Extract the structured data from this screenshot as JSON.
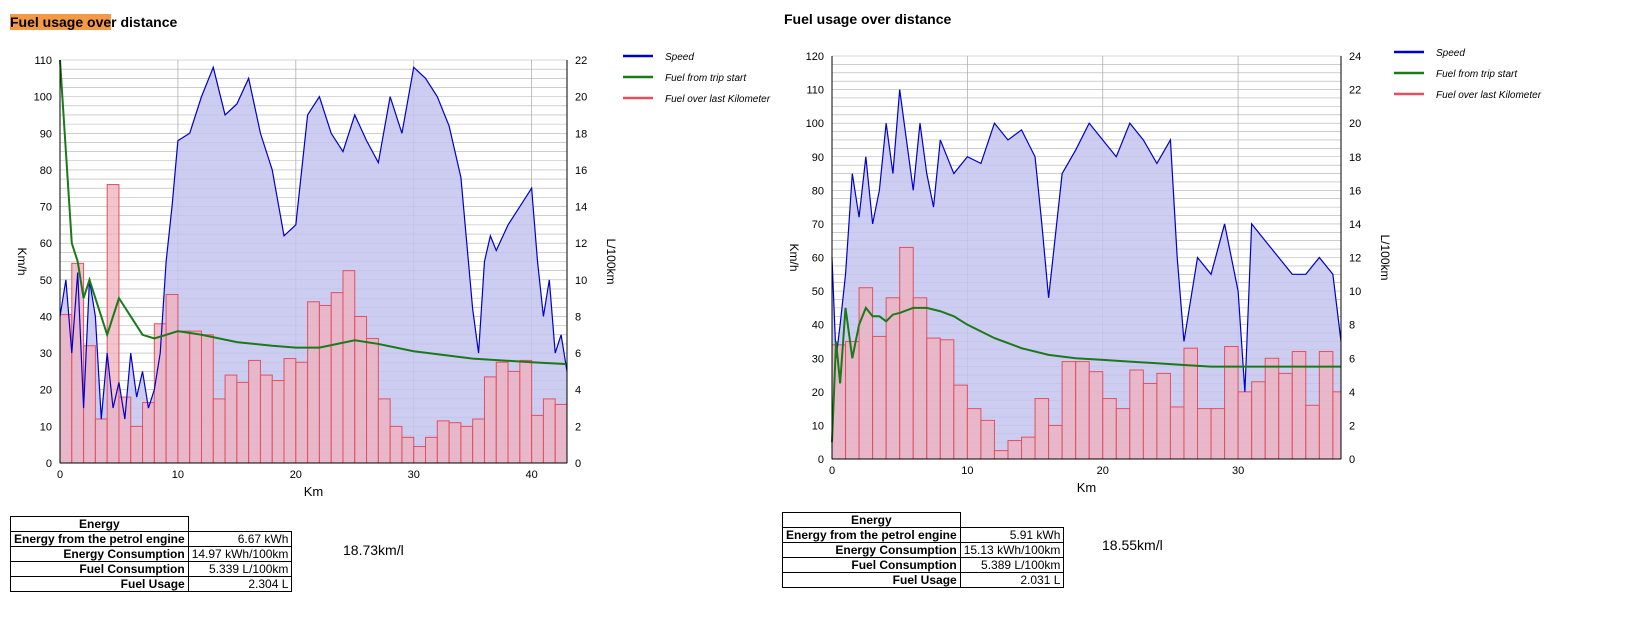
{
  "charts": [
    {
      "title_highlight": "Fuel usage ove",
      "title_rest": "r distance",
      "efficiency": "18.73km/l",
      "table": {
        "header": "Energy",
        "rows": [
          {
            "label": "Energy from the petrol engine",
            "value": "6.67 kWh"
          },
          {
            "label": "Energy Consumption",
            "value": "14.97 kWh/100km"
          },
          {
            "label": "Fuel Consumption",
            "value": "5.339 L/100km"
          },
          {
            "label": "Fuel Usage",
            "value": "2.304 L"
          }
        ]
      }
    },
    {
      "title_highlight": "",
      "title_rest": "Fuel usage over distance",
      "efficiency": "18.55km/l",
      "table": {
        "header": "Energy",
        "rows": [
          {
            "label": "Energy from the petrol engine",
            "value": "5.91 kWh"
          },
          {
            "label": "Energy Consumption",
            "value": "15.13 kWh/100km"
          },
          {
            "label": "Fuel Consumption",
            "value": "5.389 L/100km"
          },
          {
            "label": "Fuel Usage",
            "value": "2.031 L"
          }
        ]
      }
    }
  ],
  "chart_data": [
    {
      "type": "area",
      "title": "Fuel usage over distance",
      "xlabel": "Km",
      "ylabel": "Km/h",
      "y2label": "L/100km",
      "xlim": [
        0,
        43
      ],
      "ylim": [
        0,
        110
      ],
      "y2lim": [
        0,
        22
      ],
      "xticks": [
        0,
        10,
        20,
        30,
        40
      ],
      "yticks": [
        0,
        10,
        20,
        30,
        40,
        50,
        60,
        70,
        80,
        90,
        100,
        110
      ],
      "y2ticks": [
        0,
        2,
        4,
        6,
        8,
        10,
        12,
        14,
        16,
        18,
        20,
        22
      ],
      "grid": true,
      "legend_position": "top-right",
      "colors": {
        "speed": "#0000cc",
        "speed_fill": "#c4c4f0",
        "fuel_trip": "#1a7a1a",
        "fuel_km": "#e05060",
        "fuel_km_fill": "#f0b0bc"
      },
      "legend": [
        "Speed",
        "Fuel from trip start",
        "Fuel over last Kilometer"
      ],
      "speed": {
        "name": "Speed",
        "x": [
          0,
          0.5,
          1,
          1.5,
          2,
          2.5,
          3,
          3.5,
          4,
          4.5,
          5,
          5.5,
          6,
          6.5,
          7,
          7.5,
          8,
          8.5,
          9,
          9.5,
          10,
          11,
          12,
          13,
          14,
          15,
          16,
          17,
          18,
          19,
          20,
          21,
          22,
          23,
          24,
          25,
          26,
          27,
          28,
          29,
          30,
          31,
          32,
          33,
          34,
          35,
          35.5,
          36,
          36.5,
          37,
          38,
          39,
          40,
          40.5,
          41,
          41.5,
          42,
          42.5,
          43
        ],
        "y": [
          40,
          50,
          30,
          52,
          15,
          50,
          40,
          12,
          30,
          15,
          22,
          12,
          30,
          18,
          25,
          15,
          20,
          30,
          55,
          70,
          88,
          90,
          100,
          108,
          95,
          98,
          105,
          90,
          80,
          62,
          65,
          95,
          100,
          90,
          85,
          95,
          88,
          82,
          100,
          90,
          108,
          105,
          100,
          92,
          78,
          42,
          30,
          55,
          62,
          58,
          65,
          70,
          75,
          55,
          40,
          50,
          30,
          35,
          25
        ]
      },
      "fuel_from_trip_start": {
        "name": "Fuel from trip start",
        "x": [
          0,
          0.2,
          0.5,
          1,
          1.5,
          2,
          2.5,
          3,
          3.5,
          4,
          4.5,
          5,
          6,
          7,
          8,
          9,
          10,
          12,
          15,
          18,
          20,
          22,
          25,
          27,
          30,
          35,
          40,
          43
        ],
        "y": [
          22,
          20,
          17,
          12,
          11,
          9,
          10,
          9,
          8,
          7,
          8,
          9,
          8,
          7,
          6.8,
          7,
          7.2,
          7.0,
          6.6,
          6.4,
          6.3,
          6.3,
          6.7,
          6.5,
          6.1,
          5.7,
          5.5,
          5.4
        ]
      },
      "fuel_over_last_km": {
        "name": "Fuel over last Kilometer",
        "x": [
          0,
          1,
          2,
          3,
          4,
          5,
          6,
          7,
          8,
          9,
          10,
          11,
          12,
          13,
          14,
          15,
          16,
          17,
          18,
          19,
          20,
          21,
          22,
          23,
          24,
          25,
          26,
          27,
          28,
          29,
          30,
          31,
          32,
          33,
          34,
          35,
          36,
          37,
          38,
          39,
          40,
          41,
          42
        ],
        "y": [
          8.1,
          10.9,
          6.4,
          2.4,
          15.2,
          3.6,
          2.0,
          3.3,
          7.6,
          9.2,
          7.2,
          7.2,
          7.0,
          3.5,
          4.8,
          4.4,
          5.6,
          4.8,
          4.5,
          5.7,
          5.5,
          8.8,
          8.6,
          9.3,
          10.5,
          8.0,
          6.8,
          3.5,
          2.0,
          1.4,
          0.9,
          1.4,
          2.3,
          2.2,
          2.0,
          2.4,
          4.7,
          5.5,
          5.0,
          5.6,
          2.6,
          3.5,
          3.2
        ]
      }
    },
    {
      "type": "area",
      "title": "Fuel usage over distance",
      "xlabel": "Km",
      "ylabel": "Km/h",
      "y2label": "L/100km",
      "xlim": [
        0,
        37.6
      ],
      "ylim": [
        0,
        120
      ],
      "y2lim": [
        0,
        24
      ],
      "xticks": [
        0,
        10,
        20,
        30
      ],
      "yticks": [
        0,
        10,
        20,
        30,
        40,
        50,
        60,
        70,
        80,
        90,
        100,
        110,
        120
      ],
      "y2ticks": [
        0,
        2,
        4,
        6,
        8,
        10,
        12,
        14,
        16,
        18,
        20,
        22,
        24
      ],
      "grid": true,
      "legend_position": "top-right",
      "colors": {
        "speed": "#0000cc",
        "speed_fill": "#c4c4f0",
        "fuel_trip": "#1a7a1a",
        "fuel_km": "#e05060",
        "fuel_km_fill": "#f0b0bc"
      },
      "legend": [
        "Speed",
        "Fuel from trip start",
        "Fuel over last Kilometer"
      ],
      "speed": {
        "name": "Speed",
        "x": [
          0,
          0.3,
          0.6,
          1,
          1.5,
          2,
          2.5,
          3,
          3.5,
          4,
          4.5,
          5,
          5.5,
          6,
          6.5,
          7,
          7.5,
          8,
          9,
          10,
          11,
          12,
          13,
          14,
          15,
          15.5,
          16,
          17,
          18,
          19,
          20,
          21,
          22,
          23,
          24,
          25,
          25.5,
          26,
          27,
          28,
          29,
          30,
          30.5,
          31,
          32,
          33,
          34,
          35,
          36,
          37,
          37.6
        ],
        "y": [
          60,
          30,
          40,
          55,
          85,
          72,
          90,
          70,
          80,
          100,
          85,
          110,
          95,
          80,
          100,
          85,
          75,
          95,
          85,
          90,
          88,
          100,
          95,
          98,
          90,
          70,
          48,
          85,
          92,
          100,
          95,
          90,
          100,
          95,
          88,
          95,
          60,
          35,
          60,
          55,
          70,
          50,
          20,
          70,
          65,
          60,
          55,
          55,
          60,
          55,
          35
        ]
      },
      "fuel_from_trip_start": {
        "name": "Fuel from trip start",
        "x": [
          0,
          0.3,
          0.6,
          1,
          1.5,
          2,
          2.5,
          3,
          3.5,
          4,
          4.5,
          5,
          6,
          7,
          8,
          9,
          10,
          12,
          14,
          16,
          18,
          20,
          22,
          24,
          26,
          28,
          30,
          32,
          35,
          37.6
        ],
        "y": [
          1.0,
          7,
          4.5,
          9,
          6,
          8,
          9,
          8.5,
          8.5,
          8.2,
          8.6,
          8.7,
          9.0,
          9.0,
          8.8,
          8.5,
          8.0,
          7.2,
          6.6,
          6.2,
          6.0,
          5.9,
          5.8,
          5.7,
          5.6,
          5.5,
          5.5,
          5.5,
          5.5,
          5.5
        ]
      },
      "fuel_over_last_km": {
        "name": "Fuel over last Kilometer",
        "x": [
          0,
          1,
          2,
          3,
          4,
          5,
          6,
          7,
          8,
          9,
          10,
          11,
          12,
          13,
          14,
          15,
          16,
          17,
          18,
          19,
          20,
          21,
          22,
          23,
          24,
          25,
          26,
          27,
          28,
          29,
          30,
          31,
          32,
          33,
          34,
          35,
          36,
          37
        ],
        "y": [
          6.8,
          7.0,
          10.2,
          7.3,
          9.6,
          12.6,
          9.6,
          7.2,
          7.1,
          4.4,
          3.0,
          2.3,
          0.5,
          1.1,
          1.3,
          3.6,
          2.0,
          5.8,
          5.8,
          5.2,
          3.6,
          3.0,
          5.3,
          4.5,
          5.1,
          3.1,
          6.6,
          3.0,
          3.0,
          6.7,
          4.0,
          4.6,
          6.0,
          5.1,
          6.4,
          3.2,
          6.4,
          4.0
        ]
      }
    }
  ]
}
